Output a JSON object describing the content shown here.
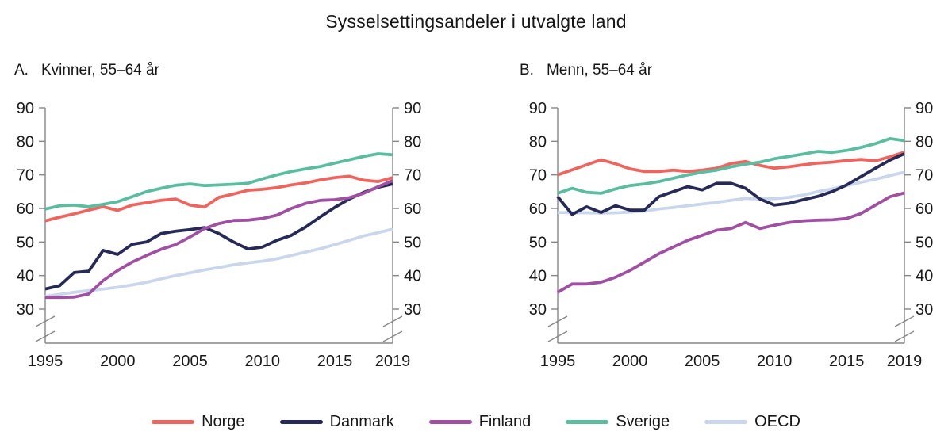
{
  "title": "Sysselsettingsandeler i utvalgte land",
  "panels": [
    {
      "label": "A.",
      "subtitle": "Kvinner, 55–64 år"
    },
    {
      "label": "B.",
      "subtitle": "Menn, 55–64 år"
    }
  ],
  "legend": {
    "items": [
      {
        "label": "Norge",
        "color": "#ec665f"
      },
      {
        "label": "Danmark",
        "color": "#272a56"
      },
      {
        "label": "Finland",
        "color": "#a050a2"
      },
      {
        "label": "Sverige",
        "color": "#5abda0"
      },
      {
        "label": "OECD",
        "color": "#c9d6ec"
      }
    ]
  },
  "axis_color": "#868686",
  "chart_data": [
    {
      "type": "line",
      "title": "A. Kvinner, 55–64 år",
      "xlabel": "",
      "ylabel": "",
      "ylim": [
        30,
        90
      ],
      "axis_break": true,
      "grid": false,
      "legend_position": "bottom",
      "x": [
        1995,
        1996,
        1997,
        1998,
        1999,
        2000,
        2001,
        2002,
        2003,
        2004,
        2005,
        2006,
        2007,
        2008,
        2009,
        2010,
        2011,
        2012,
        2013,
        2014,
        2015,
        2016,
        2017,
        2018,
        2019
      ],
      "xticks": [
        1995,
        2000,
        2005,
        2010,
        2015,
        2019
      ],
      "yticks": [
        90,
        80,
        70,
        60,
        50,
        40,
        30
      ],
      "series": [
        {
          "name": "Norge",
          "color": "#ec665f",
          "values": [
            56.3,
            57.4,
            58.4,
            59.5,
            60.5,
            59.4,
            61.0,
            61.7,
            62.4,
            62.8,
            61.0,
            60.4,
            63.3,
            64.3,
            65.4,
            65.7,
            66.2,
            67.0,
            67.6,
            68.5,
            69.2,
            69.6,
            68.4,
            68.0,
            69.2
          ]
        },
        {
          "name": "Danmark",
          "color": "#272a56",
          "values": [
            36.0,
            37.0,
            40.9,
            41.3,
            47.5,
            46.3,
            49.3,
            50.0,
            52.5,
            53.2,
            53.7,
            54.3,
            52.5,
            50.0,
            47.9,
            48.5,
            50.5,
            52.0,
            54.5,
            57.5,
            60.3,
            62.8,
            64.8,
            66.3,
            67.3
          ]
        },
        {
          "name": "Finland",
          "color": "#a050a2",
          "values": [
            33.5,
            33.5,
            33.6,
            34.5,
            38.5,
            41.5,
            44.0,
            46.0,
            47.8,
            49.2,
            51.5,
            54.0,
            55.5,
            56.4,
            56.5,
            57.0,
            58.0,
            60.0,
            61.5,
            62.4,
            62.6,
            63.2,
            64.5,
            66.5,
            68.3
          ]
        },
        {
          "name": "Sverige",
          "color": "#5abda0",
          "values": [
            59.8,
            60.8,
            61.0,
            60.5,
            61.2,
            62.0,
            63.5,
            65.0,
            66.0,
            66.9,
            67.3,
            66.8,
            67.0,
            67.2,
            67.5,
            68.8,
            70.0,
            71.0,
            71.8,
            72.5,
            73.5,
            74.5,
            75.5,
            76.3,
            76.0
          ]
        },
        {
          "name": "OECD",
          "color": "#c9d6ec",
          "values": [
            33.8,
            34.4,
            35.0,
            35.5,
            36.0,
            36.5,
            37.2,
            38.0,
            39.0,
            40.0,
            40.8,
            41.7,
            42.4,
            43.2,
            43.8,
            44.3,
            45.0,
            46.0,
            47.0,
            48.0,
            49.2,
            50.5,
            51.8,
            52.8,
            53.8
          ]
        }
      ]
    },
    {
      "type": "line",
      "title": "B. Menn, 55–64 år",
      "xlabel": "",
      "ylabel": "",
      "ylim": [
        30,
        90
      ],
      "axis_break": true,
      "grid": false,
      "legend_position": "bottom",
      "x": [
        1995,
        1996,
        1997,
        1998,
        1999,
        2000,
        2001,
        2002,
        2003,
        2004,
        2005,
        2006,
        2007,
        2008,
        2009,
        2010,
        2011,
        2012,
        2013,
        2014,
        2015,
        2016,
        2017,
        2018,
        2019
      ],
      "xticks": [
        1995,
        2000,
        2005,
        2010,
        2015,
        2019
      ],
      "yticks": [
        90,
        80,
        70,
        60,
        50,
        40,
        30
      ],
      "series": [
        {
          "name": "Norge",
          "color": "#ec665f",
          "values": [
            70.0,
            71.5,
            73.0,
            74.5,
            73.3,
            71.8,
            71.0,
            71.0,
            71.4,
            71.0,
            71.4,
            72.0,
            73.4,
            74.0,
            72.8,
            72.0,
            72.4,
            73.0,
            73.5,
            73.8,
            74.3,
            74.6,
            74.2,
            75.4,
            76.8
          ]
        },
        {
          "name": "Danmark",
          "color": "#272a56",
          "values": [
            63.5,
            58.2,
            60.5,
            58.8,
            60.8,
            59.5,
            59.5,
            63.5,
            65.0,
            66.5,
            65.5,
            67.5,
            67.5,
            66.0,
            62.8,
            61.0,
            61.5,
            62.6,
            63.6,
            65.0,
            67.0,
            69.5,
            72.0,
            74.4,
            76.3
          ]
        },
        {
          "name": "Finland",
          "color": "#a050a2",
          "values": [
            35.0,
            37.5,
            37.5,
            38.0,
            39.5,
            41.5,
            44.0,
            46.5,
            48.5,
            50.5,
            52.0,
            53.5,
            54.0,
            55.8,
            54.0,
            55.0,
            55.8,
            56.3,
            56.5,
            56.6,
            57.0,
            58.5,
            61.0,
            63.5,
            64.6
          ]
        },
        {
          "name": "Sverige",
          "color": "#5abda0",
          "values": [
            64.5,
            66.0,
            64.8,
            64.5,
            65.8,
            66.8,
            67.3,
            68.0,
            69.0,
            70.0,
            70.8,
            71.4,
            72.4,
            73.2,
            73.8,
            74.8,
            75.5,
            76.2,
            77.0,
            76.7,
            77.3,
            78.2,
            79.3,
            80.8,
            80.2
          ]
        },
        {
          "name": "OECD",
          "color": "#c9d6ec",
          "values": [
            58.8,
            58.7,
            58.7,
            58.6,
            58.7,
            58.9,
            59.2,
            59.8,
            60.3,
            60.8,
            61.3,
            61.8,
            62.4,
            63.0,
            62.8,
            62.9,
            63.3,
            64.0,
            65.0,
            65.8,
            66.8,
            67.8,
            68.7,
            69.8,
            70.8
          ]
        }
      ]
    }
  ]
}
